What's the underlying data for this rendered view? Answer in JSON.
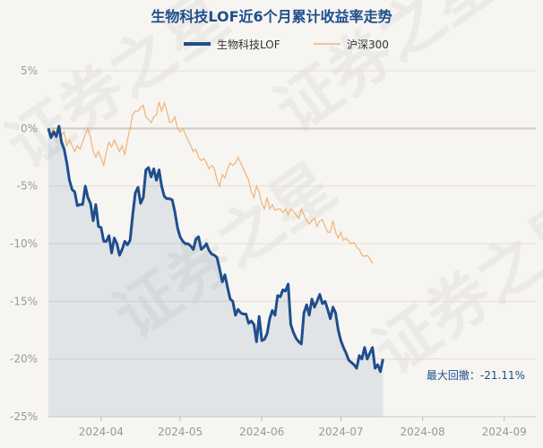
{
  "chart_data": {
    "type": "line",
    "title": "生物科技LOF近6个月累计收益率走势",
    "y_unit": "%",
    "ylim": [
      -25,
      5
    ],
    "y_ticks": [
      5,
      0,
      -5,
      -10,
      -15,
      -20,
      -25
    ],
    "y_tick_labels": [
      "5%",
      "0%",
      "-5%",
      "-10%",
      "-15%",
      "-20%",
      "-25%"
    ],
    "x_range": [
      "2024-03-12",
      "2024-09-13"
    ],
    "x_ticks": [
      "2024-04-01",
      "2024-05-01",
      "2024-06-01",
      "2024-07-01",
      "2024-08-01",
      "2024-09-01"
    ],
    "x_tick_labels": [
      "2024-04",
      "2024-05",
      "2024-06",
      "2024-07",
      "2024-08",
      "2024-09"
    ],
    "grid": "y-only",
    "legend_position": "top-center",
    "annotation": "最大回撤：-21.11%",
    "watermark": "证券之星",
    "series": [
      {
        "name": "生物科技LOF",
        "color": "#1f4e8c",
        "points": [
          [
            "2024-03-12",
            0.0
          ],
          [
            "2024-03-13",
            -0.8
          ],
          [
            "2024-03-14",
            -0.3
          ],
          [
            "2024-03-15",
            -0.7
          ],
          [
            "2024-03-16",
            0.2
          ],
          [
            "2024-03-17",
            -1.2
          ],
          [
            "2024-03-18",
            -1.8
          ],
          [
            "2024-03-19",
            -3.0
          ],
          [
            "2024-03-20",
            -4.5
          ],
          [
            "2024-03-21",
            -5.3
          ],
          [
            "2024-03-22",
            -5.5
          ],
          [
            "2024-03-23",
            -6.7
          ],
          [
            "2024-03-24",
            -6.6
          ],
          [
            "2024-03-25",
            -6.6
          ],
          [
            "2024-03-26",
            -5.0
          ],
          [
            "2024-03-27",
            -6.0
          ],
          [
            "2024-03-28",
            -6.5
          ],
          [
            "2024-03-29",
            -8.0
          ],
          [
            "2024-03-30",
            -6.6
          ],
          [
            "2024-03-31",
            -8.5
          ],
          [
            "2024-04-01",
            -8.6
          ],
          [
            "2024-04-02",
            -9.8
          ],
          [
            "2024-04-03",
            -9.8
          ],
          [
            "2024-04-04",
            -9.3
          ],
          [
            "2024-04-05",
            -10.8
          ],
          [
            "2024-04-06",
            -9.5
          ],
          [
            "2024-04-07",
            -10.0
          ],
          [
            "2024-04-08",
            -11.0
          ],
          [
            "2024-04-09",
            -10.5
          ],
          [
            "2024-04-10",
            -9.8
          ],
          [
            "2024-04-11",
            -10.1
          ],
          [
            "2024-04-12",
            -9.7
          ],
          [
            "2024-04-13",
            -7.5
          ],
          [
            "2024-04-14",
            -5.6
          ],
          [
            "2024-04-15",
            -5.1
          ],
          [
            "2024-04-16",
            -6.5
          ],
          [
            "2024-04-17",
            -6.0
          ],
          [
            "2024-04-18",
            -3.6
          ],
          [
            "2024-04-19",
            -3.4
          ],
          [
            "2024-04-20",
            -4.2
          ],
          [
            "2024-04-21",
            -3.5
          ],
          [
            "2024-04-22",
            -4.5
          ],
          [
            "2024-04-23",
            -3.6
          ],
          [
            "2024-04-24",
            -5.0
          ],
          [
            "2024-04-25",
            -5.9
          ],
          [
            "2024-04-26",
            -6.1
          ],
          [
            "2024-04-27",
            -6.1
          ],
          [
            "2024-04-28",
            -6.2
          ],
          [
            "2024-04-29",
            -7.2
          ],
          [
            "2024-04-30",
            -8.6
          ],
          [
            "2024-05-01",
            -9.4
          ],
          [
            "2024-05-02",
            -9.8
          ],
          [
            "2024-05-03",
            -10.0
          ],
          [
            "2024-05-04",
            -10.0
          ],
          [
            "2024-05-05",
            -10.2
          ],
          [
            "2024-05-06",
            -10.5
          ],
          [
            "2024-05-07",
            -9.6
          ],
          [
            "2024-05-08",
            -9.4
          ],
          [
            "2024-05-09",
            -10.5
          ],
          [
            "2024-05-10",
            -10.3
          ],
          [
            "2024-05-11",
            -10.0
          ],
          [
            "2024-05-12",
            -10.6
          ],
          [
            "2024-05-13",
            -10.9
          ],
          [
            "2024-05-14",
            -11.0
          ],
          [
            "2024-05-15",
            -11.2
          ],
          [
            "2024-05-16",
            -12.2
          ],
          [
            "2024-05-17",
            -13.3
          ],
          [
            "2024-05-18",
            -12.7
          ],
          [
            "2024-05-19",
            -13.8
          ],
          [
            "2024-05-20",
            -14.8
          ],
          [
            "2024-05-21",
            -15.0
          ],
          [
            "2024-05-22",
            -16.2
          ],
          [
            "2024-05-23",
            -15.7
          ],
          [
            "2024-05-24",
            -16.0
          ],
          [
            "2024-05-25",
            -16.1
          ],
          [
            "2024-05-26",
            -16.1
          ],
          [
            "2024-05-27",
            -16.9
          ],
          [
            "2024-05-28",
            -16.7
          ],
          [
            "2024-05-29",
            -17.0
          ],
          [
            "2024-05-30",
            -18.5
          ],
          [
            "2024-05-31",
            -16.3
          ],
          [
            "2024-06-01",
            -18.4
          ],
          [
            "2024-06-02",
            -18.3
          ],
          [
            "2024-06-03",
            -17.8
          ],
          [
            "2024-06-04",
            -16.5
          ],
          [
            "2024-06-05",
            -15.8
          ],
          [
            "2024-06-06",
            -16.2
          ],
          [
            "2024-06-07",
            -14.5
          ],
          [
            "2024-06-08",
            -14.6
          ],
          [
            "2024-06-09",
            -14.0
          ],
          [
            "2024-06-10",
            -14.1
          ],
          [
            "2024-06-11",
            -13.5
          ],
          [
            "2024-06-12",
            -17.0
          ],
          [
            "2024-06-13",
            -17.7
          ],
          [
            "2024-06-14",
            -18.2
          ],
          [
            "2024-06-15",
            -18.5
          ],
          [
            "2024-06-16",
            -18.7
          ],
          [
            "2024-06-17",
            -16.0
          ],
          [
            "2024-06-18",
            -15.3
          ],
          [
            "2024-06-19",
            -16.2
          ],
          [
            "2024-06-20",
            -14.8
          ],
          [
            "2024-06-21",
            -15.5
          ],
          [
            "2024-06-22",
            -15.0
          ],
          [
            "2024-06-23",
            -14.4
          ],
          [
            "2024-06-24",
            -15.2
          ],
          [
            "2024-06-25",
            -15.0
          ],
          [
            "2024-06-26",
            -15.7
          ],
          [
            "2024-06-27",
            -16.5
          ],
          [
            "2024-06-28",
            -15.5
          ],
          [
            "2024-06-29",
            -16.0
          ],
          [
            "2024-06-30",
            -17.5
          ],
          [
            "2024-07-01",
            -18.4
          ],
          [
            "2024-07-02",
            -19.0
          ],
          [
            "2024-07-03",
            -19.5
          ],
          [
            "2024-07-04",
            -20.1
          ],
          [
            "2024-07-05",
            -20.3
          ],
          [
            "2024-07-06",
            -20.5
          ],
          [
            "2024-07-07",
            -20.8
          ],
          [
            "2024-07-08",
            -19.7
          ],
          [
            "2024-07-09",
            -20.0
          ],
          [
            "2024-07-10",
            -19.0
          ],
          [
            "2024-07-11",
            -20.0
          ],
          [
            "2024-07-12",
            -19.5
          ],
          [
            "2024-07-13",
            -19.0
          ],
          [
            "2024-07-14",
            -20.8
          ],
          [
            "2024-07-15",
            -20.5
          ],
          [
            "2024-07-16",
            -21.1
          ],
          [
            "2024-07-17",
            -20.0
          ]
        ]
      },
      {
        "name": "沪深300",
        "color": "#f0b27a",
        "points": [
          [
            "2024-03-12",
            0.0
          ],
          [
            "2024-03-13",
            -0.5
          ],
          [
            "2024-03-14",
            0.0
          ],
          [
            "2024-03-15",
            -0.9
          ],
          [
            "2024-03-16",
            -0.2
          ],
          [
            "2024-03-17",
            -0.6
          ],
          [
            "2024-03-18",
            -0.3
          ],
          [
            "2024-03-19",
            -1.5
          ],
          [
            "2024-03-20",
            -1.0
          ],
          [
            "2024-03-21",
            -1.5
          ],
          [
            "2024-03-22",
            -2.0
          ],
          [
            "2024-03-23",
            -1.5
          ],
          [
            "2024-03-24",
            -1.8
          ],
          [
            "2024-03-25",
            -1.2
          ],
          [
            "2024-03-26",
            -0.5
          ],
          [
            "2024-03-27",
            0.0
          ],
          [
            "2024-03-28",
            -0.8
          ],
          [
            "2024-03-29",
            -2.0
          ],
          [
            "2024-03-30",
            -2.5
          ],
          [
            "2024-03-31",
            -2.0
          ],
          [
            "2024-04-01",
            -2.6
          ],
          [
            "2024-04-02",
            -3.2
          ],
          [
            "2024-04-03",
            -2.0
          ],
          [
            "2024-04-04",
            -1.2
          ],
          [
            "2024-04-05",
            -1.6
          ],
          [
            "2024-04-06",
            -1.0
          ],
          [
            "2024-04-07",
            -1.5
          ],
          [
            "2024-04-08",
            -2.0
          ],
          [
            "2024-04-09",
            -1.5
          ],
          [
            "2024-04-10",
            -2.3
          ],
          [
            "2024-04-11",
            -1.0
          ],
          [
            "2024-04-12",
            0.0
          ],
          [
            "2024-04-13",
            1.2
          ],
          [
            "2024-04-14",
            1.5
          ],
          [
            "2024-04-15",
            1.5
          ],
          [
            "2024-04-16",
            1.8
          ],
          [
            "2024-04-17",
            2.0
          ],
          [
            "2024-04-18",
            1.0
          ],
          [
            "2024-04-19",
            0.8
          ],
          [
            "2024-04-20",
            0.5
          ],
          [
            "2024-04-21",
            1.0
          ],
          [
            "2024-04-22",
            1.2
          ],
          [
            "2024-04-23",
            2.3
          ],
          [
            "2024-04-24",
            1.5
          ],
          [
            "2024-04-25",
            2.2
          ],
          [
            "2024-04-26",
            1.5
          ],
          [
            "2024-04-27",
            0.5
          ],
          [
            "2024-04-28",
            0.6
          ],
          [
            "2024-04-29",
            1.0
          ],
          [
            "2024-04-30",
            0.0
          ],
          [
            "2024-05-01",
            -0.3
          ],
          [
            "2024-05-02",
            0.0
          ],
          [
            "2024-05-03",
            -0.5
          ],
          [
            "2024-05-04",
            -1.0
          ],
          [
            "2024-05-05",
            -1.5
          ],
          [
            "2024-05-06",
            -2.0
          ],
          [
            "2024-05-07",
            -1.8
          ],
          [
            "2024-05-08",
            -2.5
          ],
          [
            "2024-05-09",
            -2.8
          ],
          [
            "2024-05-10",
            -2.6
          ],
          [
            "2024-05-11",
            -3.0
          ],
          [
            "2024-05-12",
            -3.5
          ],
          [
            "2024-05-13",
            -3.2
          ],
          [
            "2024-05-14",
            -3.5
          ],
          [
            "2024-05-15",
            -4.5
          ],
          [
            "2024-05-16",
            -5.0
          ],
          [
            "2024-05-17",
            -4.0
          ],
          [
            "2024-05-18",
            -4.3
          ],
          [
            "2024-05-19",
            -3.5
          ],
          [
            "2024-05-20",
            -3.0
          ],
          [
            "2024-05-21",
            -3.2
          ],
          [
            "2024-05-22",
            -3.0
          ],
          [
            "2024-05-23",
            -2.5
          ],
          [
            "2024-05-24",
            -3.0
          ],
          [
            "2024-05-25",
            -3.5
          ],
          [
            "2024-05-26",
            -4.0
          ],
          [
            "2024-05-27",
            -4.5
          ],
          [
            "2024-05-28",
            -5.5
          ],
          [
            "2024-05-29",
            -6.0
          ],
          [
            "2024-05-30",
            -5.0
          ],
          [
            "2024-05-31",
            -5.5
          ],
          [
            "2024-06-01",
            -6.5
          ],
          [
            "2024-06-02",
            -7.0
          ],
          [
            "2024-06-03",
            -6.0
          ],
          [
            "2024-06-04",
            -7.0
          ],
          [
            "2024-06-05",
            -6.6
          ],
          [
            "2024-06-06",
            -7.1
          ],
          [
            "2024-06-07",
            -7.0
          ],
          [
            "2024-06-08",
            -7.0
          ],
          [
            "2024-06-09",
            -7.3
          ],
          [
            "2024-06-10",
            -7.0
          ],
          [
            "2024-06-11",
            -7.5
          ],
          [
            "2024-06-12",
            -7.0
          ],
          [
            "2024-06-13",
            -7.2
          ],
          [
            "2024-06-14",
            -7.5
          ],
          [
            "2024-06-15",
            -7.8
          ],
          [
            "2024-06-16",
            -7.0
          ],
          [
            "2024-06-17",
            -7.5
          ],
          [
            "2024-06-18",
            -8.0
          ],
          [
            "2024-06-19",
            -8.3
          ],
          [
            "2024-06-20",
            -8.0
          ],
          [
            "2024-06-21",
            -7.8
          ],
          [
            "2024-06-22",
            -8.5
          ],
          [
            "2024-06-23",
            -8.0
          ],
          [
            "2024-06-24",
            -7.9
          ],
          [
            "2024-06-25",
            -8.5
          ],
          [
            "2024-06-26",
            -9.0
          ],
          [
            "2024-06-27",
            -9.0
          ],
          [
            "2024-06-28",
            -8.0
          ],
          [
            "2024-06-29",
            -9.0
          ],
          [
            "2024-06-30",
            -9.5
          ],
          [
            "2024-07-01",
            -9.0
          ],
          [
            "2024-07-02",
            -9.7
          ],
          [
            "2024-07-03",
            -9.5
          ],
          [
            "2024-07-04",
            -9.8
          ],
          [
            "2024-07-05",
            -10.0
          ],
          [
            "2024-07-06",
            -9.9
          ],
          [
            "2024-07-07",
            -10.3
          ],
          [
            "2024-07-08",
            -10.5
          ],
          [
            "2024-07-09",
            -11.0
          ],
          [
            "2024-07-10",
            -11.1
          ],
          [
            "2024-07-11",
            -11.0
          ],
          [
            "2024-07-12",
            -11.3
          ],
          [
            "2024-07-13",
            -11.7
          ]
        ]
      }
    ]
  }
}
